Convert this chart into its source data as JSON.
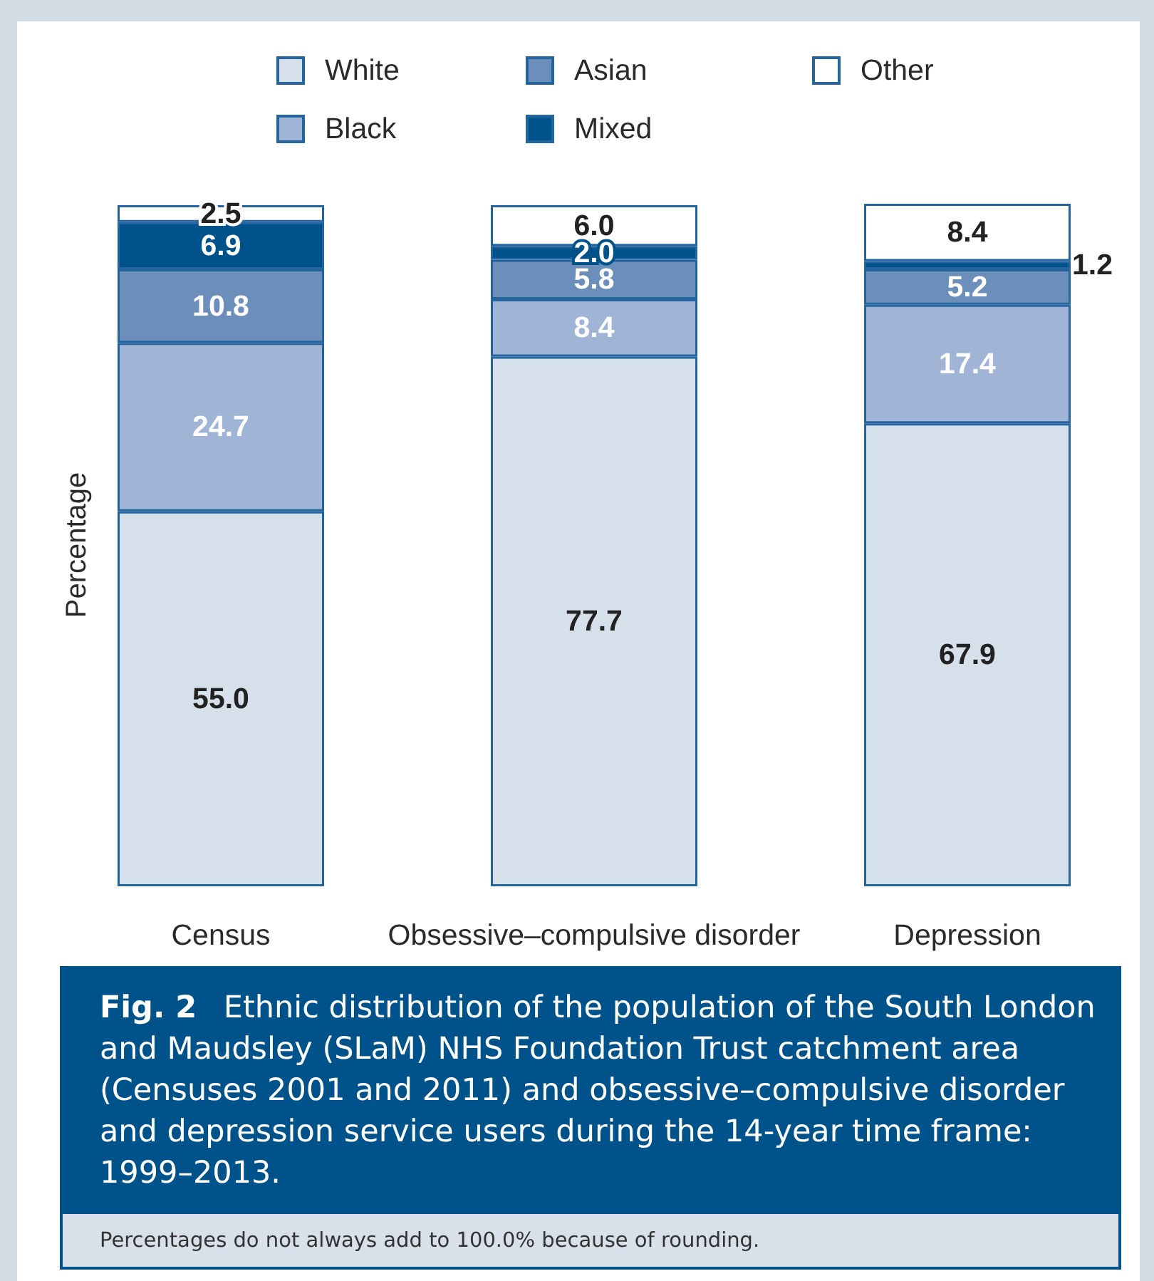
{
  "chart_data": {
    "type": "bar",
    "stacked": true,
    "title": "Fig. 2 Ethnic distribution of the population of the South London and Maudsley (SLaM) NHS Foundation Trust catchment area (Censuses 2001 and 2011) and obsessive–compulsive disorder and depression service users during the 14-year time frame: 1999–2013.",
    "ylabel": "Percentage",
    "categories": [
      "Census",
      "Obsessive–compulsive disorder",
      "Depression"
    ],
    "series": [
      {
        "name": "White",
        "color": "#d6e0eb",
        "values": [
          55.0,
          77.7,
          67.9
        ],
        "value_labels": [
          "55.0",
          "77.7",
          "67.9"
        ]
      },
      {
        "name": "Black",
        "color": "#a0b4d6",
        "values": [
          24.7,
          8.4,
          17.4
        ],
        "value_labels": [
          "24.7",
          "8.4",
          "17.4"
        ]
      },
      {
        "name": "Asian",
        "color": "#6b8eba",
        "values": [
          10.8,
          5.8,
          5.2
        ],
        "value_labels": [
          "10.8",
          "5.8",
          "5.2"
        ]
      },
      {
        "name": "Mixed",
        "color": "#00528a",
        "values": [
          6.9,
          2.0,
          1.2
        ],
        "value_labels": [
          "6.9",
          "2.0",
          "1.2"
        ]
      },
      {
        "name": "Other",
        "color": "#ffffff",
        "values": [
          2.5,
          6.0,
          8.4
        ],
        "value_labels": [
          "2.5",
          "6.0",
          "8.4"
        ]
      }
    ],
    "legend": "top",
    "tick_labels": "x",
    "annotations": [
      "Percentages do not always add to 100.0% because of rounding."
    ]
  }
}
